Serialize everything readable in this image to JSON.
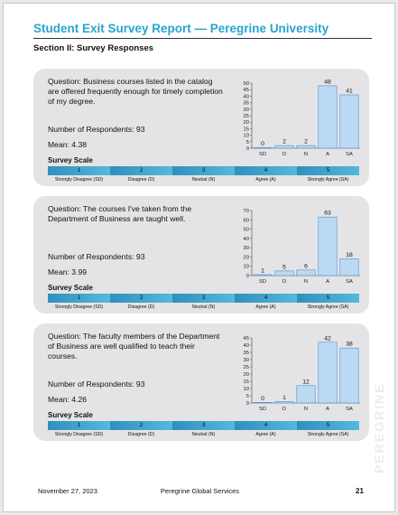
{
  "header": {
    "title": "Student Exit Survey Report — Peregrine University",
    "section": "Section II: Survey Responses"
  },
  "scale": {
    "title": "Survey Scale",
    "numbers": [
      "1",
      "2",
      "3",
      "4",
      "5"
    ],
    "labels": [
      "Strongly Disagree (SD)",
      "Disagree (D)",
      "Neutral (N)",
      "Agree (A)",
      "Strongly Agree (SA)"
    ]
  },
  "cards": [
    {
      "question": "Question: Business courses listed in the catalog are offered frequently enough for timely completion of my degree.",
      "respondents": "Number of Respondents: 93",
      "mean": "Mean: 4.38"
    },
    {
      "question": "Question: The courses I've taken from the Department of Business are taught well.",
      "respondents": "Number of Respondents: 93",
      "mean": "Mean: 3.99"
    },
    {
      "question": "Question: The faculty members of the Department of Business are well qualified to teach their courses.",
      "respondents": "Number of Respondents: 93",
      "mean": "Mean: 4.26"
    }
  ],
  "chart_data": [
    {
      "type": "bar",
      "categories": [
        "SD",
        "D",
        "N",
        "A",
        "SA"
      ],
      "values": [
        0,
        2,
        2,
        48,
        41
      ],
      "ylim": [
        0,
        50
      ],
      "yticks": [
        0,
        5,
        10,
        15,
        20,
        25,
        30,
        35,
        40,
        45,
        50
      ],
      "data_labels": true,
      "grid": false,
      "bar_color": "#bcd9f3"
    },
    {
      "type": "bar",
      "categories": [
        "SD",
        "D",
        "N",
        "A",
        "SA"
      ],
      "values": [
        1,
        5,
        6,
        63,
        18
      ],
      "ylim": [
        0,
        70
      ],
      "yticks": [
        0,
        10,
        20,
        30,
        40,
        50,
        60,
        70
      ],
      "data_labels": true,
      "grid": false,
      "bar_color": "#bcd9f3"
    },
    {
      "type": "bar",
      "categories": [
        "SD",
        "D",
        "N",
        "A",
        "SA"
      ],
      "values": [
        0,
        1,
        12,
        42,
        38
      ],
      "ylim": [
        0,
        45
      ],
      "yticks": [
        0,
        5,
        10,
        15,
        20,
        25,
        30,
        35,
        40,
        45
      ],
      "data_labels": true,
      "grid": false,
      "bar_color": "#bcd9f3"
    }
  ],
  "watermark": "PEREGRINE",
  "footer": {
    "date": "November 27, 2023",
    "company": "Peregrine Global Services",
    "page_number": "21"
  },
  "colors": {
    "title": "#2aa4cf",
    "card_bg": "#e4e4e6",
    "bar_fill": "#bcd9f3",
    "bar_stroke": "#4a8fd0",
    "scale_band": "#2f90bd"
  }
}
